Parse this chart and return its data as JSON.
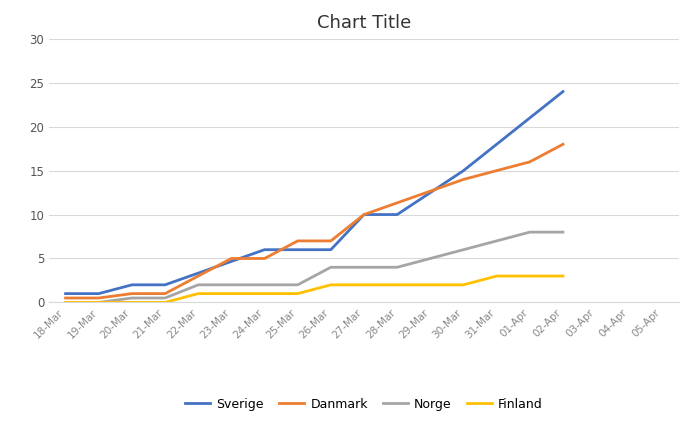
{
  "title": "Chart Title",
  "dates": [
    "18-Mar",
    "19-Mar",
    "20-Mar",
    "21-Mar",
    "22-Mar",
    "23-Mar",
    "24-Mar",
    "25-Mar",
    "26-Mar",
    "27-Mar",
    "28-Mar",
    "29-Mar",
    "30-Mar",
    "31-Mar",
    "01-Apr",
    "02-Apr",
    "03-Apr",
    "04-Apr",
    "05-Apr"
  ],
  "sverige": [
    1,
    1,
    2,
    2,
    null,
    null,
    6,
    6,
    6,
    10,
    10,
    null,
    15,
    18,
    null,
    24,
    null,
    null,
    null
  ],
  "danmark": [
    0.5,
    0.5,
    1,
    1,
    null,
    5,
    5,
    7,
    7,
    10,
    null,
    null,
    14,
    15,
    16,
    18,
    null,
    null,
    null
  ],
  "norge": [
    0,
    0,
    0.5,
    0.5,
    2,
    2,
    2,
    2,
    4,
    4,
    4,
    null,
    null,
    null,
    8,
    8,
    null,
    null,
    null
  ],
  "finland": [
    0,
    0,
    0,
    0,
    1,
    1,
    1,
    1,
    2,
    2,
    2,
    2,
    2,
    3,
    3,
    3,
    null,
    null,
    null
  ],
  "colors": {
    "sverige": "#4472C4",
    "danmark": "#ED7D31",
    "norge": "#A5A5A5",
    "finland": "#FFC000"
  },
  "ylim": [
    0,
    30
  ],
  "yticks": [
    0,
    5,
    10,
    15,
    20,
    25,
    30
  ],
  "background": "#FFFFFF",
  "plot_background": "#FFFFFF",
  "grid_color": "#D9D9D9",
  "legend_labels": [
    "Sverige",
    "Danmark",
    "Norge",
    "Finland"
  ]
}
